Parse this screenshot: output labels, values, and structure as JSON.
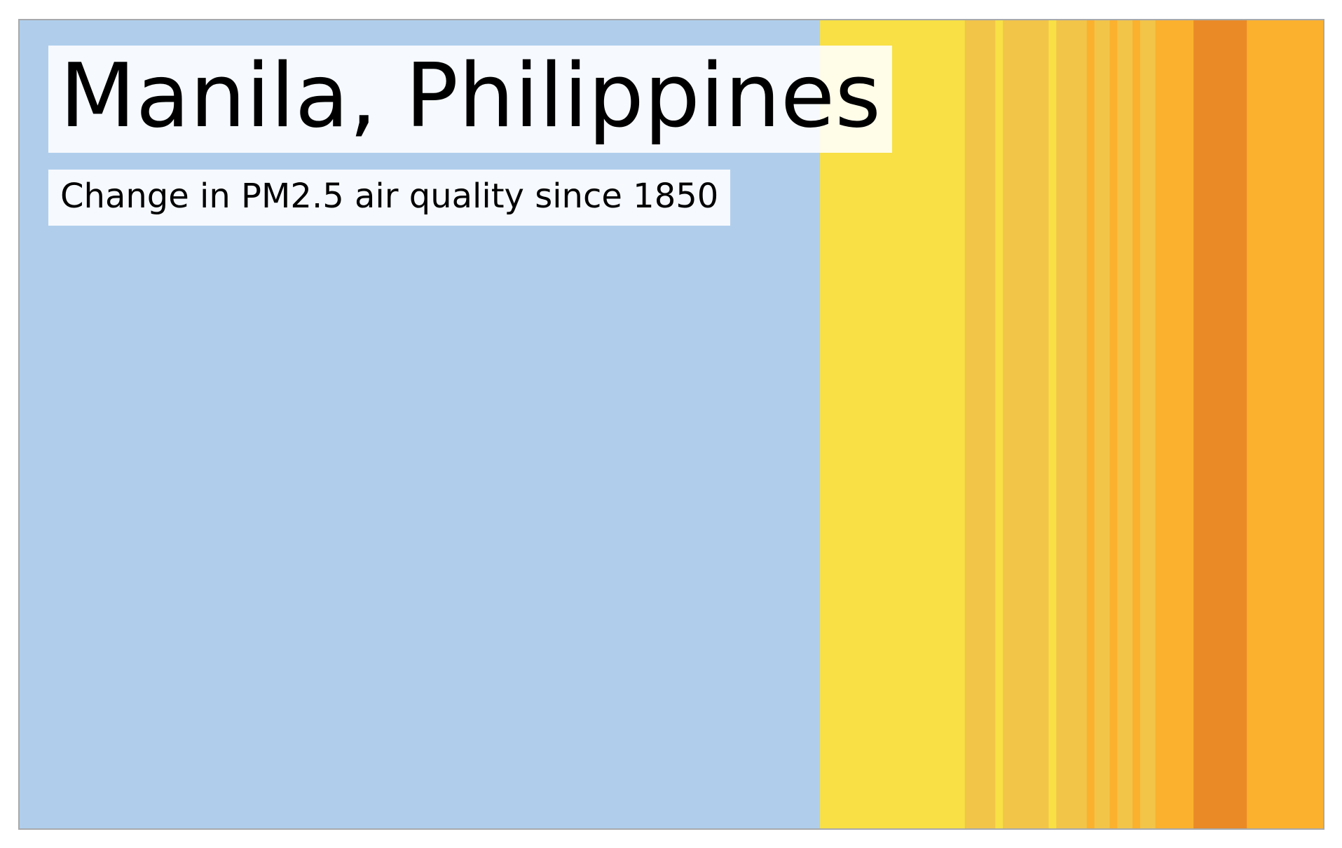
{
  "chart_data": {
    "type": "heatmap",
    "title": "Manila, Philippines",
    "subtitle": "Change in PM2.5 air quality since 1850",
    "xlim": [
      1850,
      2021
    ],
    "grid": false,
    "legend": "none",
    "segments": [
      {
        "start": 1850,
        "end": 1955,
        "color": "#b0ceec"
      },
      {
        "start": 1955,
        "end": 1974,
        "color": "#f8e045"
      },
      {
        "start": 1974,
        "end": 1978,
        "color": "#f2c549"
      },
      {
        "start": 1978,
        "end": 1979,
        "color": "#f8e045"
      },
      {
        "start": 1979,
        "end": 1985,
        "color": "#f2c549"
      },
      {
        "start": 1985,
        "end": 1986,
        "color": "#f8e045"
      },
      {
        "start": 1986,
        "end": 1990,
        "color": "#f2c549"
      },
      {
        "start": 1990,
        "end": 1991,
        "color": "#fbb12e"
      },
      {
        "start": 1991,
        "end": 1993,
        "color": "#f2c549"
      },
      {
        "start": 1993,
        "end": 1994,
        "color": "#fbb12e"
      },
      {
        "start": 1994,
        "end": 1996,
        "color": "#f2c549"
      },
      {
        "start": 1996,
        "end": 1997,
        "color": "#fbb12e"
      },
      {
        "start": 1997,
        "end": 1999,
        "color": "#f2c549"
      },
      {
        "start": 1999,
        "end": 2004,
        "color": "#fbb12e"
      },
      {
        "start": 2004,
        "end": 2011,
        "color": "#ea8a27"
      },
      {
        "start": 2011,
        "end": 2021,
        "color": "#fbb12e"
      }
    ]
  }
}
